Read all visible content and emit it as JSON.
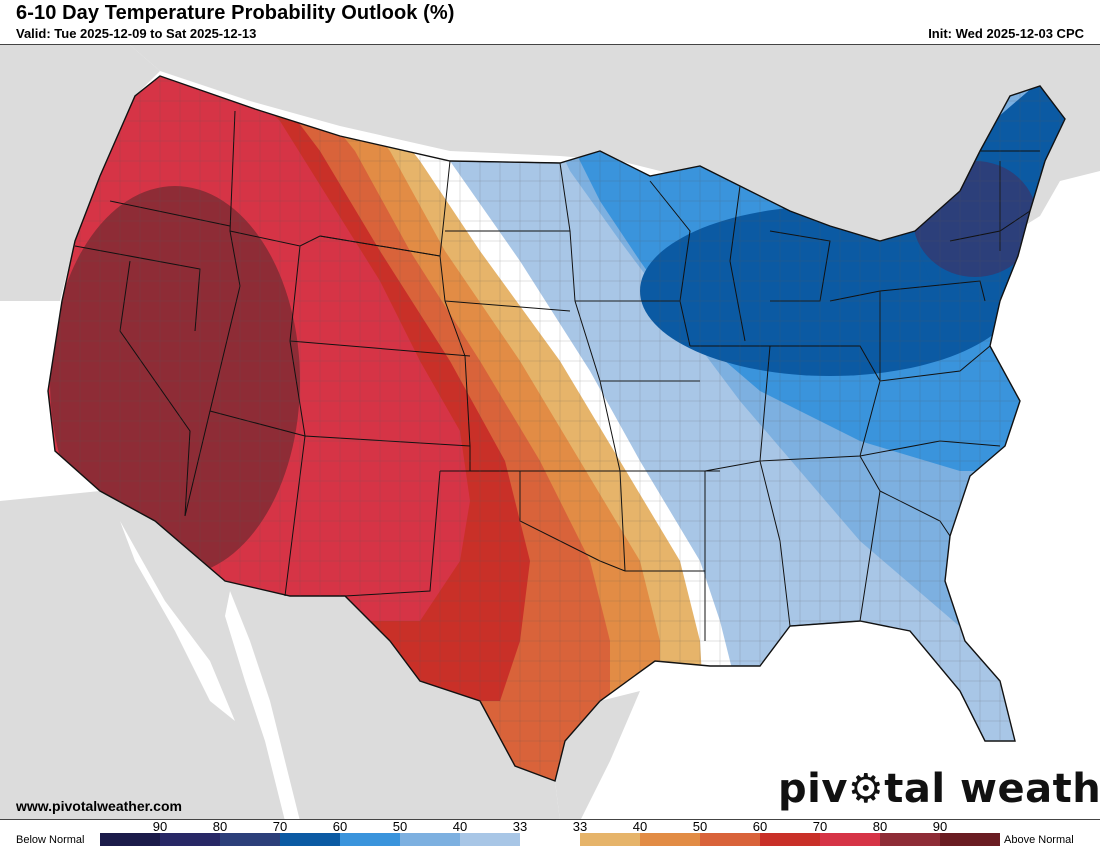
{
  "header": {
    "title": "6-10 Day Temperature Probability Outlook (%)",
    "valid": "Valid: Tue 2025-12-09 to Sat 2025-12-13",
    "init": "Init: Wed 2025-12-03 CPC"
  },
  "footer": {
    "website": "www.pivotalweather.com",
    "brand_left": "piv",
    "brand_right": "tal weather"
  },
  "legend": {
    "below_label": "Below Normal",
    "above_label": "Above Normal",
    "ticks": [
      "90",
      "80",
      "70",
      "60",
      "50",
      "40",
      "33",
      "33",
      "40",
      "50",
      "60",
      "70",
      "80",
      "90"
    ],
    "colors": [
      "#1b1b4a",
      "#282866",
      "#2c3f7a",
      "#0b5aa3",
      "#3a94dc",
      "#7db0e0",
      "#a8c6e6",
      "#ffffff",
      "#e6b46a",
      "#e28c45",
      "#d9633a",
      "#c93028",
      "#d63446",
      "#8e2c36",
      "#6a1d22"
    ]
  },
  "map": {
    "background_land": "#dcdcdc",
    "background_water": "#ffffff"
  }
}
